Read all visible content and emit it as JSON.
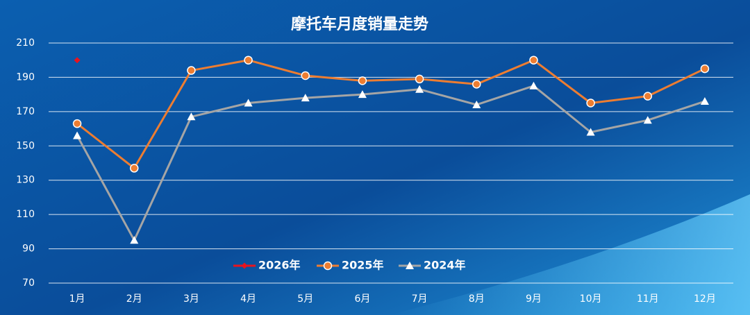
{
  "chart_data": {
    "type": "line",
    "title": "摩托车月度销量走势",
    "categories": [
      "1月",
      "2月",
      "3月",
      "4月",
      "5月",
      "6月",
      "7月",
      "8月",
      "9月",
      "10月",
      "11月",
      "12月"
    ],
    "series": [
      {
        "name": "2026年",
        "color": "#e8141e",
        "marker": "diamond",
        "values": [
          200,
          null,
          null,
          null,
          null,
          null,
          null,
          null,
          null,
          null,
          null,
          null
        ]
      },
      {
        "name": "2025年",
        "color": "#ed7d31",
        "marker": "circle",
        "values": [
          163,
          137,
          194,
          200,
          191,
          188,
          189,
          186,
          200,
          175,
          179,
          195
        ]
      },
      {
        "name": "2024年",
        "color": "#a5a5a5",
        "marker": "triangle",
        "values": [
          156,
          95,
          167,
          175,
          178,
          180,
          183,
          174,
          185,
          158,
          165,
          176
        ]
      }
    ],
    "ylim": [
      70,
      210
    ],
    "yticks": [
      70,
      90,
      110,
      130,
      150,
      170,
      190,
      210
    ],
    "grid": true,
    "legend": "bottom"
  }
}
